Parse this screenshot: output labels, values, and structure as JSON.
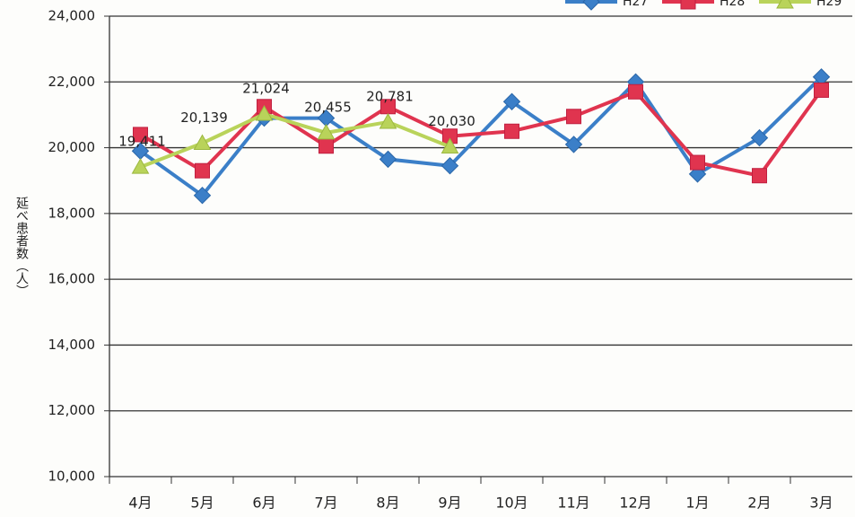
{
  "chart_data": {
    "type": "line",
    "y_label": "延べ患者数（人）",
    "categories": [
      "4月",
      "5月",
      "6月",
      "7月",
      "8月",
      "9月",
      "10月",
      "11月",
      "12月",
      "1月",
      "2月",
      "3月"
    ],
    "series": [
      {
        "name": "H27",
        "color": "#3b7fc8",
        "marker": "diamond",
        "values": [
          19900,
          18550,
          20900,
          20900,
          19650,
          19450,
          21400,
          20100,
          22000,
          19200,
          20300,
          22150
        ]
      },
      {
        "name": "H28",
        "color": "#e0344f",
        "marker": "square",
        "values": [
          20400,
          19300,
          21250,
          20050,
          21250,
          20350,
          20500,
          20950,
          21700,
          19550,
          19150,
          21750
        ]
      },
      {
        "name": "H29",
        "color": "#b9d35a",
        "marker": "triangle",
        "values": [
          19411,
          20139,
          21024,
          20455,
          20781,
          20030,
          null,
          null,
          null,
          null,
          null,
          null
        ],
        "value_labels": [
          "19,411",
          "20,139",
          "21,024",
          "20,455",
          "20,781",
          "20,030",
          null,
          null,
          null,
          null,
          null,
          null
        ]
      }
    ],
    "ylim": [
      10000,
      24000
    ],
    "yticks": [
      {
        "value": 10000,
        "label": "10,000"
      },
      {
        "value": 12000,
        "label": "12,000"
      },
      {
        "value": 14000,
        "label": "14,000"
      },
      {
        "value": 16000,
        "label": "16,000"
      },
      {
        "value": 18000,
        "label": "18,000"
      },
      {
        "value": 20000,
        "label": "20,000"
      },
      {
        "value": 22000,
        "label": "22,000"
      },
      {
        "value": 24000,
        "label": "24,000"
      }
    ],
    "grid": true,
    "legend": "top-right"
  }
}
